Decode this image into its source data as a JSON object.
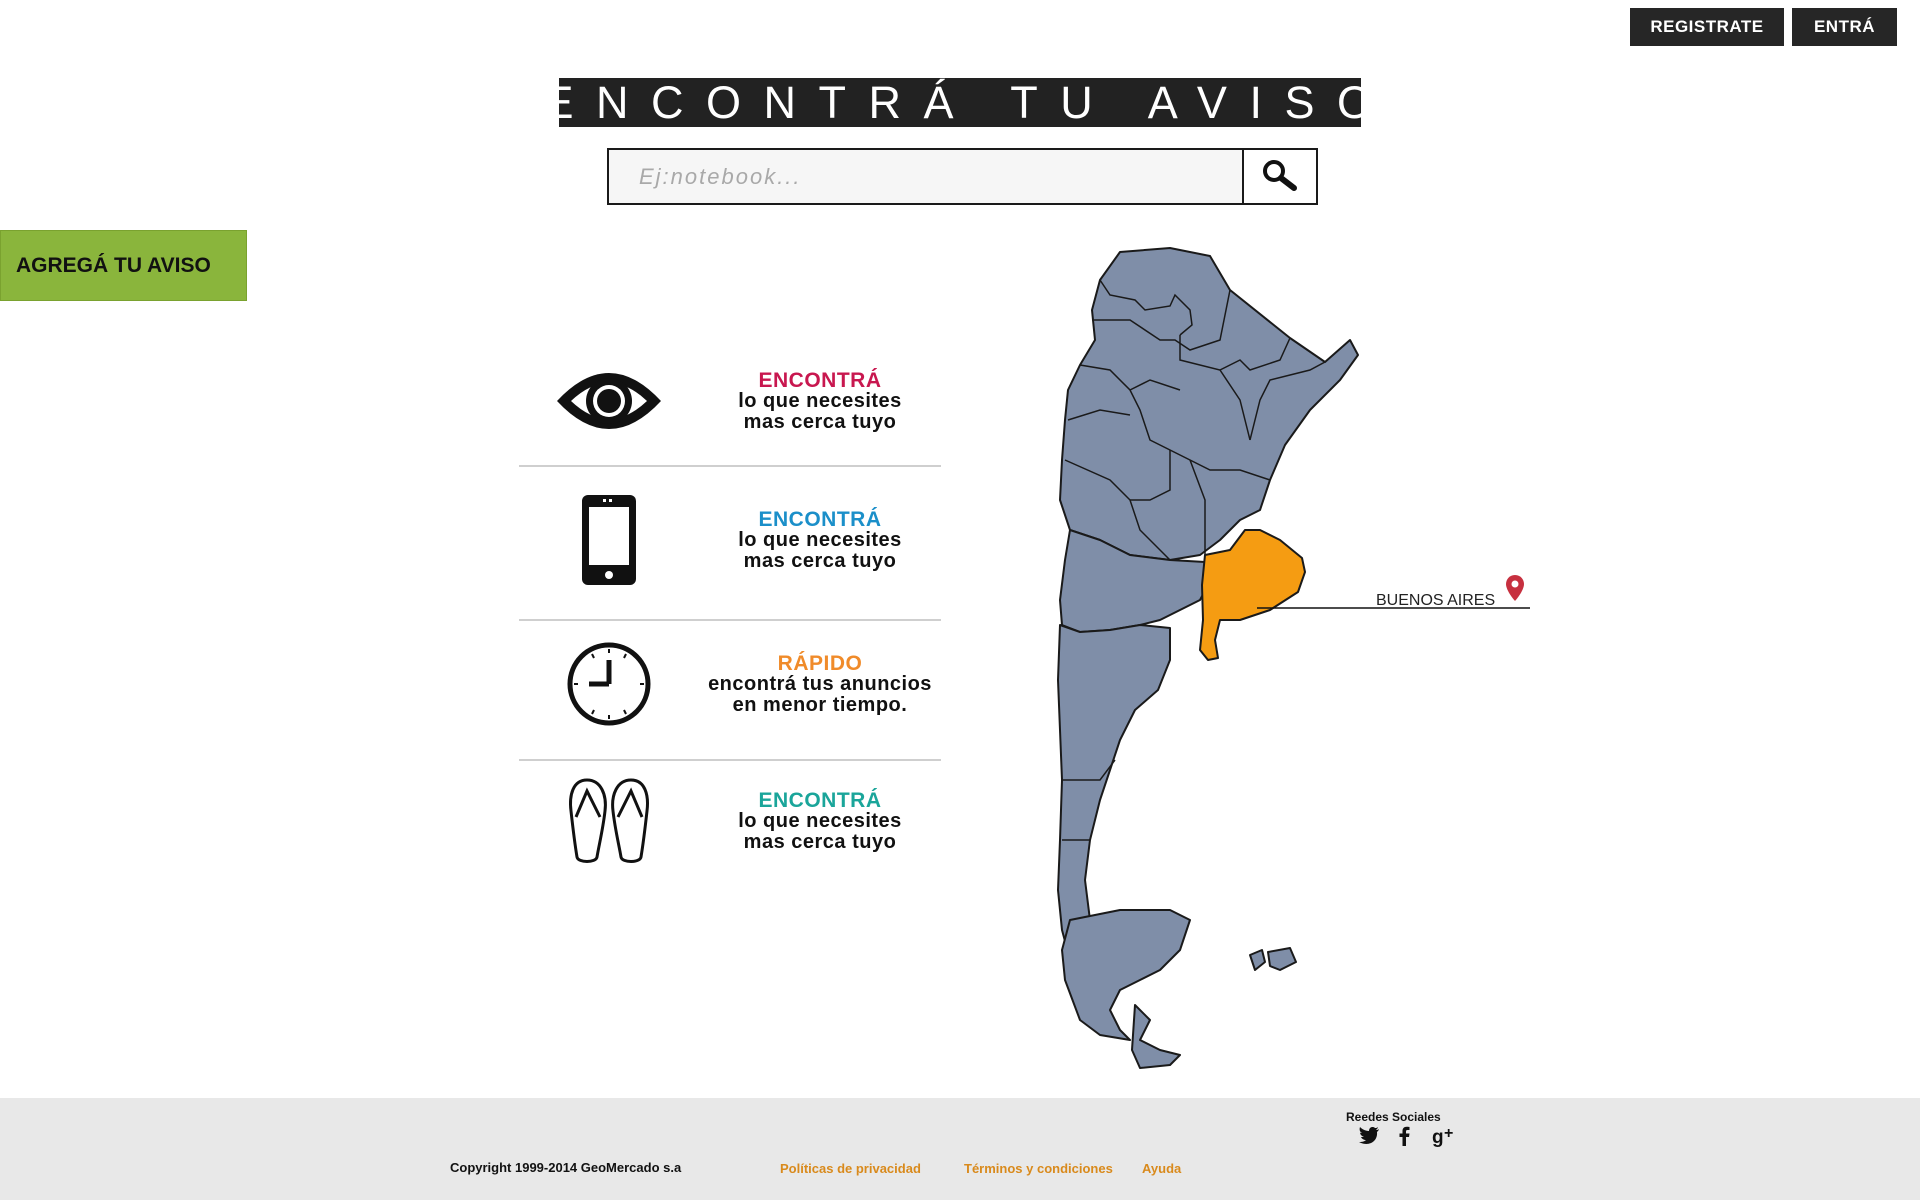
{
  "header": {
    "register_label": "REGISTRATE",
    "login_label": "ENTRÁ"
  },
  "hero": {
    "title": "ENCONTRÁ TU AVISO",
    "search_placeholder": "Ej:notebook..."
  },
  "sidebar": {
    "add_ad_label": "AGREGÁ TU AVISO"
  },
  "features": [
    {
      "icon": "eye-icon",
      "title": "ENCONTRÁ",
      "title_color": "#c8174f",
      "line1": "lo que necesites",
      "line2": "mas cerca tuyo"
    },
    {
      "icon": "smartphone-icon",
      "title": "ENCONTRÁ",
      "title_color": "#1b8fc9",
      "line1": "lo que necesites",
      "line2": "mas cerca tuyo"
    },
    {
      "icon": "clock-icon",
      "title": "RÁPIDO",
      "title_color": "#f08b2a",
      "line1": "encontrá tus anuncios",
      "line2": "en menor tiempo."
    },
    {
      "icon": "flip-flops-icon",
      "title": "ENCONTRÁ",
      "title_color": "#1aa59a",
      "line1": "lo que necesites",
      "line2": "mas cerca tuyo"
    }
  ],
  "map": {
    "highlight_label": "BUENOS AIRES",
    "province_color": "#7f8ea8",
    "highlight_color": "#f59c12"
  },
  "footer": {
    "copyright": "Copyright 1999-2014 GeoMercado s.a",
    "links": [
      "Políticas de privacidad",
      "Términos y condiciones",
      "Ayuda"
    ],
    "social_title": "Reedes Sociales",
    "social_icons": [
      "twitter-icon",
      "facebook-icon",
      "google-plus-icon"
    ]
  }
}
